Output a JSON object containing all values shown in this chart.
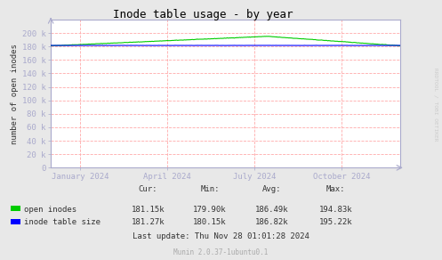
{
  "title": "Inode table usage - by year",
  "ylabel": "number of open inodes",
  "background_color": "#e8e8e8",
  "plot_bg_color": "#ffffff",
  "grid_color": "#ffaaaa",
  "axis_color": "#aaaacc",
  "title_color": "#000000",
  "ylim": [
    0,
    220000
  ],
  "yticks": [
    0,
    20000,
    40000,
    60000,
    80000,
    100000,
    120000,
    140000,
    160000,
    180000,
    200000
  ],
  "ytick_labels": [
    "0",
    "20 k",
    "40 k",
    "60 k",
    "80 k",
    "100 k",
    "120 k",
    "140 k",
    "160 k",
    "180 k",
    "200 k"
  ],
  "open_inodes_color": "#00cc00",
  "inode_table_color": "#0000ff",
  "watermark": "RRDTOOL / TOBI OETIKER",
  "footer": "Munin 2.0.37-1ubuntu0.1",
  "last_update": "Last update: Thu Nov 28 01:01:28 2024",
  "stats_header": [
    "Cur:",
    "Min:",
    "Avg:",
    "Max:"
  ],
  "open_inodes_stats": [
    "181.15k",
    "179.90k",
    "186.49k",
    "194.83k"
  ],
  "inode_table_stats": [
    "181.27k",
    "180.15k",
    "186.82k",
    "195.22k"
  ],
  "xtick_positions": [
    0.0833,
    0.333,
    0.583,
    0.833
  ],
  "xtick_labels": [
    "January 2024",
    "April 2024",
    "July 2024",
    "October 2024"
  ]
}
